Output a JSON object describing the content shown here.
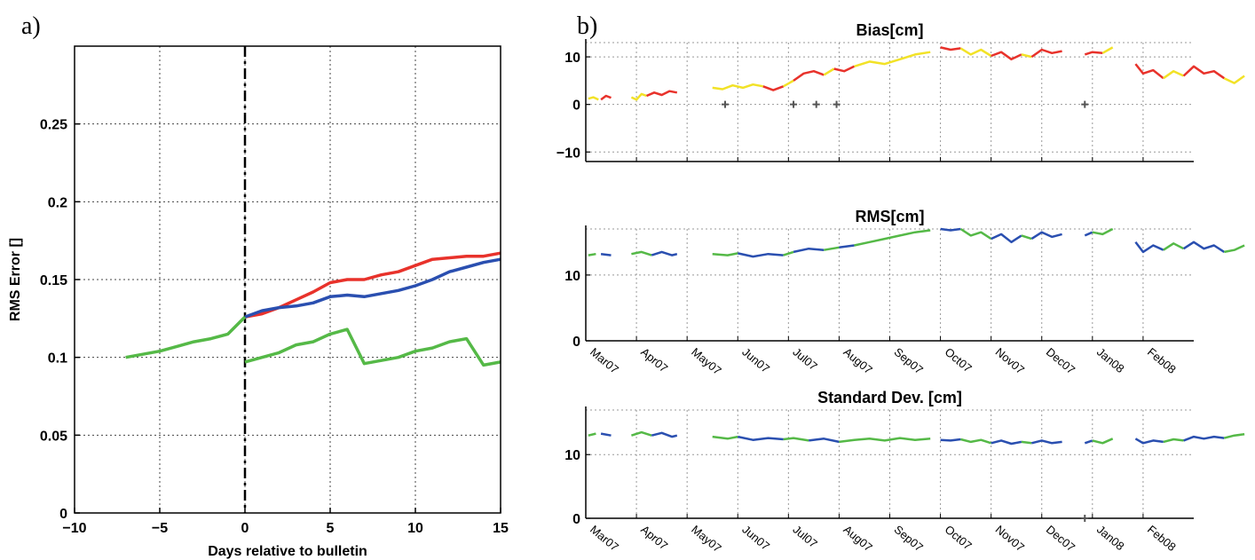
{
  "panel_labels": {
    "a": "a)",
    "b": "b)"
  },
  "chart_data": [
    {
      "type": "line",
      "panel": "a)",
      "title": "",
      "xlabel": "Days relative to bulletin",
      "ylabel": "RMS Error []",
      "xlim": [
        -10,
        15
      ],
      "ylim": [
        0,
        0.3
      ],
      "xticks": [
        -10,
        -5,
        0,
        5,
        10,
        15
      ],
      "xtick_labels": [
        "−10",
        "−5",
        "0",
        "5",
        "10",
        "15"
      ],
      "yticks": [
        0,
        0.05,
        0.1,
        0.15,
        0.2,
        0.25
      ],
      "ytick_labels": [
        "0",
        "0.05",
        "0.1",
        "0.15",
        "0.2",
        "0.25"
      ],
      "grid": true,
      "vline_x": 0,
      "series": [
        {
          "color": "#e8322b",
          "x": [
            0,
            1,
            2,
            3,
            4,
            5,
            6,
            7,
            8,
            9,
            10,
            11,
            12,
            13,
            14,
            15
          ],
          "y": [
            0.126,
            0.128,
            0.132,
            0.137,
            0.142,
            0.148,
            0.15,
            0.15,
            0.153,
            0.155,
            0.159,
            0.163,
            0.164,
            0.165,
            0.165,
            0.167
          ]
        },
        {
          "color": "#2a4fb0",
          "x": [
            0,
            1,
            2,
            3,
            4,
            5,
            6,
            7,
            8,
            9,
            10,
            11,
            12,
            13,
            14,
            15
          ],
          "y": [
            0.126,
            0.13,
            0.132,
            0.133,
            0.135,
            0.139,
            0.14,
            0.139,
            0.141,
            0.143,
            0.146,
            0.15,
            0.155,
            0.158,
            0.161,
            0.163
          ]
        },
        {
          "color": "#55b947",
          "x": [
            -7,
            -6,
            -5,
            -4,
            -3,
            -2,
            -1,
            0
          ],
          "y": [
            0.1,
            0.102,
            0.104,
            0.107,
            0.11,
            0.112,
            0.115,
            0.126
          ]
        },
        {
          "color": "#55b947",
          "x": [
            0,
            1,
            2,
            3,
            4,
            5,
            6,
            7,
            8,
            9,
            10,
            11,
            12,
            13,
            14,
            15
          ],
          "y": [
            0.097,
            0.1,
            0.103,
            0.108,
            0.11,
            0.115,
            0.118,
            0.096,
            0.098,
            0.1,
            0.104,
            0.106,
            0.11,
            0.112,
            0.095,
            0.097
          ]
        }
      ]
    },
    {
      "type": "line",
      "panel": "b)",
      "title": "Bias[cm]",
      "ylim": [
        -12,
        13
      ],
      "yticks": [
        -10,
        0,
        10
      ],
      "ytick_labels": [
        "−10",
        "0",
        "10"
      ],
      "grid": true,
      "x_categories": [
        "Mar07",
        "Apr07",
        "May07",
        "Jun07",
        "Jul07",
        "Aug07",
        "Sep07",
        "Oct07",
        "Nov07",
        "Dec07",
        "Jan08",
        "Feb08"
      ],
      "markers_at_zero": [
        2.75,
        4.1,
        4.55,
        4.95,
        9.85
      ],
      "series": [
        {
          "color": "#f2e227",
          "x": [
            0.05,
            0.15,
            0.25
          ],
          "y": [
            1.2,
            1.5,
            1.0
          ]
        },
        {
          "color": "#e8322b",
          "x": [
            0.3,
            0.4,
            0.5
          ],
          "y": [
            1.0,
            1.8,
            1.4
          ]
        },
        {
          "color": "#f2e227",
          "x": [
            0.9,
            1.0,
            1.1,
            1.2
          ],
          "y": [
            1.5,
            1.0,
            2.2,
            1.8
          ]
        },
        {
          "color": "#e8322b",
          "x": [
            1.2,
            1.35,
            1.5,
            1.65,
            1.8
          ],
          "y": [
            1.8,
            2.5,
            2.0,
            2.8,
            2.5
          ]
        },
        {
          "color": "#f2e227",
          "x": [
            2.5,
            2.7,
            2.9,
            3.1,
            3.3,
            3.5
          ],
          "y": [
            3.5,
            3.2,
            4.0,
            3.5,
            4.2,
            3.8
          ]
        },
        {
          "color": "#e8322b",
          "x": [
            3.5,
            3.7,
            3.9
          ],
          "y": [
            3.8,
            3.0,
            3.8
          ]
        },
        {
          "color": "#f2e227",
          "x": [
            3.9,
            4.1
          ],
          "y": [
            3.8,
            5.0
          ]
        },
        {
          "color": "#e8322b",
          "x": [
            4.1,
            4.3,
            4.5,
            4.7
          ],
          "y": [
            5.0,
            6.5,
            7.0,
            6.2
          ]
        },
        {
          "color": "#f2e227",
          "x": [
            4.7,
            4.9
          ],
          "y": [
            6.2,
            7.5
          ]
        },
        {
          "color": "#e8322b",
          "x": [
            4.9,
            5.1,
            5.3
          ],
          "y": [
            7.5,
            7.0,
            8.0
          ]
        },
        {
          "color": "#f2e227",
          "x": [
            5.3,
            5.6,
            5.9,
            6.2,
            6.5,
            6.8
          ],
          "y": [
            8.0,
            9.0,
            8.5,
            9.5,
            10.5,
            11.0
          ]
        },
        {
          "color": "#e8322b",
          "x": [
            7.0,
            7.2,
            7.4
          ],
          "y": [
            12.0,
            11.5,
            11.8
          ]
        },
        {
          "color": "#f2e227",
          "x": [
            7.4,
            7.6,
            7.8,
            8.0
          ],
          "y": [
            11.8,
            10.5,
            11.5,
            10.2
          ]
        },
        {
          "color": "#e8322b",
          "x": [
            8.0,
            8.2,
            8.4,
            8.6
          ],
          "y": [
            10.2,
            11.0,
            9.5,
            10.5
          ]
        },
        {
          "color": "#f2e227",
          "x": [
            8.6,
            8.8
          ],
          "y": [
            10.5,
            10.0
          ]
        },
        {
          "color": "#e8322b",
          "x": [
            8.8,
            9.0,
            9.2,
            9.4
          ],
          "y": [
            10.0,
            11.5,
            10.8,
            11.2
          ]
        },
        {
          "color": "#e8322b",
          "x": [
            9.85,
            10.0,
            10.2
          ],
          "y": [
            10.5,
            11.0,
            10.8
          ]
        },
        {
          "color": "#f2e227",
          "x": [
            10.2,
            10.4
          ],
          "y": [
            10.8,
            12.0
          ]
        },
        {
          "color": "#e8322b",
          "x": [
            10.85,
            11.0,
            11.2,
            11.4
          ],
          "y": [
            8.5,
            6.5,
            7.2,
            5.5
          ]
        },
        {
          "color": "#f2e227",
          "x": [
            11.4,
            11.6,
            11.8
          ],
          "y": [
            5.5,
            7.0,
            6.0
          ]
        },
        {
          "color": "#e8322b",
          "x": [
            11.8,
            12.0,
            12.2,
            12.4,
            12.6
          ],
          "y": [
            6.0,
            8.0,
            6.5,
            7.0,
            5.5
          ]
        },
        {
          "color": "#f2e227",
          "x": [
            12.6,
            12.8,
            13.0
          ],
          "y": [
            5.5,
            4.5,
            6.0
          ]
        }
      ]
    },
    {
      "type": "line",
      "panel": "b)",
      "title": "RMS[cm]",
      "ylim": [
        0,
        17
      ],
      "yticks": [
        0,
        10
      ],
      "ytick_labels": [
        "0",
        "10"
      ],
      "grid": true,
      "x_categories": [
        "Mar07",
        "Apr07",
        "May07",
        "Jun07",
        "Jul07",
        "Aug07",
        "Sep07",
        "Oct07",
        "Nov07",
        "Dec07",
        "Jan08",
        "Feb08"
      ],
      "series": [
        {
          "color": "#55b947",
          "x": [
            0.05,
            0.2
          ],
          "y": [
            13.0,
            13.2
          ]
        },
        {
          "color": "#2a4fb0",
          "x": [
            0.3,
            0.5
          ],
          "y": [
            13.2,
            13.0
          ]
        },
        {
          "color": "#55b947",
          "x": [
            0.9,
            1.1,
            1.3
          ],
          "y": [
            13.2,
            13.5,
            13.0
          ]
        },
        {
          "color": "#2a4fb0",
          "x": [
            1.3,
            1.5,
            1.7,
            1.8
          ],
          "y": [
            13.0,
            13.5,
            13.0,
            13.2
          ]
        },
        {
          "color": "#55b947",
          "x": [
            2.5,
            2.8,
            3.0
          ],
          "y": [
            13.2,
            13.0,
            13.3
          ]
        },
        {
          "color": "#2a4fb0",
          "x": [
            3.0,
            3.3,
            3.6,
            3.9
          ],
          "y": [
            13.3,
            12.8,
            13.2,
            13.0
          ]
        },
        {
          "color": "#55b947",
          "x": [
            3.9,
            4.1
          ],
          "y": [
            13.0,
            13.5
          ]
        },
        {
          "color": "#2a4fb0",
          "x": [
            4.1,
            4.4,
            4.7
          ],
          "y": [
            13.5,
            14.0,
            13.8
          ]
        },
        {
          "color": "#55b947",
          "x": [
            4.7,
            5.0
          ],
          "y": [
            13.8,
            14.2
          ]
        },
        {
          "color": "#2a4fb0",
          "x": [
            5.0,
            5.3
          ],
          "y": [
            14.2,
            14.5
          ]
        },
        {
          "color": "#55b947",
          "x": [
            5.3,
            5.6,
            5.9,
            6.2,
            6.5,
            6.8
          ],
          "y": [
            14.5,
            15.0,
            15.5,
            16.0,
            16.5,
            16.8
          ]
        },
        {
          "color": "#2a4fb0",
          "x": [
            7.0,
            7.2,
            7.4
          ],
          "y": [
            17.0,
            16.8,
            17.0
          ]
        },
        {
          "color": "#55b947",
          "x": [
            7.4,
            7.6,
            7.8,
            8.0
          ],
          "y": [
            17.0,
            16.0,
            16.5,
            15.5
          ]
        },
        {
          "color": "#2a4fb0",
          "x": [
            8.0,
            8.2,
            8.4,
            8.6
          ],
          "y": [
            15.5,
            16.2,
            15.0,
            16.0
          ]
        },
        {
          "color": "#55b947",
          "x": [
            8.6,
            8.8
          ],
          "y": [
            16.0,
            15.5
          ]
        },
        {
          "color": "#2a4fb0",
          "x": [
            8.8,
            9.0,
            9.2,
            9.4
          ],
          "y": [
            15.5,
            16.5,
            15.8,
            16.2
          ]
        },
        {
          "color": "#2a4fb0",
          "x": [
            9.85,
            10.0
          ],
          "y": [
            16.0,
            16.5
          ]
        },
        {
          "color": "#55b947",
          "x": [
            10.0,
            10.2,
            10.4
          ],
          "y": [
            16.5,
            16.2,
            17.0
          ]
        },
        {
          "color": "#2a4fb0",
          "x": [
            10.85,
            11.0,
            11.2,
            11.4
          ],
          "y": [
            15.0,
            13.5,
            14.5,
            13.8
          ]
        },
        {
          "color": "#55b947",
          "x": [
            11.4,
            11.6,
            11.8
          ],
          "y": [
            13.8,
            14.8,
            14.0
          ]
        },
        {
          "color": "#2a4fb0",
          "x": [
            11.8,
            12.0,
            12.2,
            12.4,
            12.6
          ],
          "y": [
            14.0,
            15.0,
            14.0,
            14.5,
            13.5
          ]
        },
        {
          "color": "#55b947",
          "x": [
            12.6,
            12.8,
            13.0
          ],
          "y": [
            13.5,
            13.8,
            14.5
          ]
        }
      ]
    },
    {
      "type": "line",
      "panel": "b)",
      "title": "Standard Dev. [cm]",
      "ylim": [
        0,
        17
      ],
      "yticks": [
        0,
        10
      ],
      "ytick_labels": [
        "0",
        "10"
      ],
      "grid": true,
      "x_categories": [
        "Mar07",
        "Apr07",
        "May07",
        "Jun07",
        "Jul07",
        "Aug07",
        "Sep07",
        "Oct07",
        "Nov07",
        "Dec07",
        "Jan08",
        "Feb08"
      ],
      "markers_at_zero": [
        9.85
      ],
      "series": [
        {
          "color": "#55b947",
          "x": [
            0.05,
            0.2
          ],
          "y": [
            13.0,
            13.3
          ]
        },
        {
          "color": "#2a4fb0",
          "x": [
            0.3,
            0.5
          ],
          "y": [
            13.3,
            13.0
          ]
        },
        {
          "color": "#55b947",
          "x": [
            0.9,
            1.1,
            1.3
          ],
          "y": [
            13.0,
            13.5,
            13.0
          ]
        },
        {
          "color": "#2a4fb0",
          "x": [
            1.3,
            1.5,
            1.7,
            1.8
          ],
          "y": [
            13.0,
            13.4,
            12.8,
            13.0
          ]
        },
        {
          "color": "#55b947",
          "x": [
            2.5,
            2.8,
            3.0
          ],
          "y": [
            12.8,
            12.5,
            12.8
          ]
        },
        {
          "color": "#2a4fb0",
          "x": [
            3.0,
            3.3,
            3.6,
            3.9
          ],
          "y": [
            12.8,
            12.3,
            12.6,
            12.4
          ]
        },
        {
          "color": "#55b947",
          "x": [
            3.9,
            4.1,
            4.4
          ],
          "y": [
            12.4,
            12.6,
            12.2
          ]
        },
        {
          "color": "#2a4fb0",
          "x": [
            4.4,
            4.7,
            5.0
          ],
          "y": [
            12.2,
            12.5,
            12.0
          ]
        },
        {
          "color": "#55b947",
          "x": [
            5.0,
            5.3,
            5.6,
            5.9,
            6.2,
            6.5,
            6.8
          ],
          "y": [
            12.0,
            12.3,
            12.5,
            12.2,
            12.6,
            12.3,
            12.5
          ]
        },
        {
          "color": "#2a4fb0",
          "x": [
            7.0,
            7.2,
            7.4
          ],
          "y": [
            12.3,
            12.2,
            12.4
          ]
        },
        {
          "color": "#55b947",
          "x": [
            7.4,
            7.6,
            7.8,
            8.0
          ],
          "y": [
            12.4,
            12.0,
            12.3,
            11.8
          ]
        },
        {
          "color": "#2a4fb0",
          "x": [
            8.0,
            8.2,
            8.4,
            8.6
          ],
          "y": [
            11.8,
            12.2,
            11.7,
            12.0
          ]
        },
        {
          "color": "#55b947",
          "x": [
            8.6,
            8.8
          ],
          "y": [
            12.0,
            11.8
          ]
        },
        {
          "color": "#2a4fb0",
          "x": [
            8.8,
            9.0,
            9.2,
            9.4
          ],
          "y": [
            11.8,
            12.2,
            11.8,
            12.0
          ]
        },
        {
          "color": "#2a4fb0",
          "x": [
            9.85,
            10.0
          ],
          "y": [
            11.8,
            12.2
          ]
        },
        {
          "color": "#55b947",
          "x": [
            10.0,
            10.2,
            10.4
          ],
          "y": [
            12.2,
            11.8,
            12.5
          ]
        },
        {
          "color": "#2a4fb0",
          "x": [
            10.85,
            11.0,
            11.2,
            11.4
          ],
          "y": [
            12.5,
            11.8,
            12.2,
            12.0
          ]
        },
        {
          "color": "#55b947",
          "x": [
            11.4,
            11.6,
            11.8
          ],
          "y": [
            12.0,
            12.4,
            12.2
          ]
        },
        {
          "color": "#2a4fb0",
          "x": [
            11.8,
            12.0,
            12.2,
            12.4,
            12.6
          ],
          "y": [
            12.2,
            12.8,
            12.5,
            12.8,
            12.6
          ]
        },
        {
          "color": "#55b947",
          "x": [
            12.6,
            12.8,
            13.0
          ],
          "y": [
            12.6,
            13.0,
            13.2
          ]
        }
      ]
    }
  ]
}
